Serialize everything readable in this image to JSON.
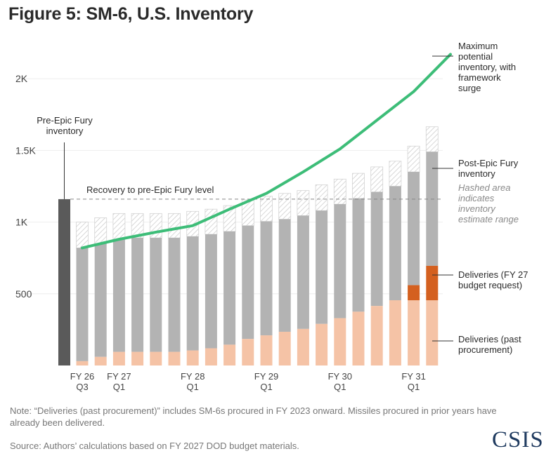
{
  "title": "Figure 5: SM-6, U.S. Inventory",
  "note": "Note: “Deliveries (past procurement)” includes SM-6s procured in FY 2023 onward. Missiles procured in prior years have already been delivered.",
  "source": "Source: Authors’ calculations based on FY 2027 DOD budget materials.",
  "logo": "CSIS",
  "colors": {
    "pre_epic_bar": "#5a5a5a",
    "post_epic_inventory": "#b3b3b3",
    "deliveries_past": "#f5c3a6",
    "deliveries_fy27": "#d4601f",
    "max_potential_line": "#3dbd78",
    "hashed": "#cfcfcf"
  },
  "chart_data": {
    "type": "bar",
    "ylim": [
      0,
      2200
    ],
    "y_ticks": [
      {
        "value": 500,
        "label": "500"
      },
      {
        "value": 1000,
        "label": "1K"
      },
      {
        "value": 1500,
        "label": "1.5K"
      },
      {
        "value": 2000,
        "label": "2K"
      }
    ],
    "x_tick_labels": [
      {
        "index": 1,
        "lines": [
          "FY 26",
          "Q3"
        ]
      },
      {
        "index": 3,
        "lines": [
          "FY 27",
          "Q1"
        ]
      },
      {
        "index": 7,
        "lines": [
          "FY 28",
          "Q1"
        ]
      },
      {
        "index": 11,
        "lines": [
          "FY 29",
          "Q1"
        ]
      },
      {
        "index": 15,
        "lines": [
          "FY 30",
          "Q1"
        ]
      },
      {
        "index": 19,
        "lines": [
          "FY 31",
          "Q1"
        ]
      }
    ],
    "pre_epic": {
      "value": 1160,
      "label": [
        "Pre-Epic Fury",
        "inventory"
      ]
    },
    "reference_line": {
      "value": 1160,
      "label": "Recovery to pre-Epic Fury level"
    },
    "quarters": [
      {
        "past": 30,
        "fy27": 0,
        "low": 820,
        "high": 1000
      },
      {
        "past": 60,
        "fy27": 0,
        "low": 850,
        "high": 1030
      },
      {
        "past": 95,
        "fy27": 0,
        "low": 880,
        "high": 1060
      },
      {
        "past": 95,
        "fy27": 0,
        "low": 890,
        "high": 1060
      },
      {
        "past": 95,
        "fy27": 0,
        "low": 890,
        "high": 1060
      },
      {
        "past": 95,
        "fy27": 0,
        "low": 890,
        "high": 1060
      },
      {
        "past": 105,
        "fy27": 0,
        "low": 900,
        "high": 1075
      },
      {
        "past": 120,
        "fy27": 0,
        "low": 915,
        "high": 1090
      },
      {
        "past": 145,
        "fy27": 0,
        "low": 935,
        "high": 1115
      },
      {
        "past": 185,
        "fy27": 0,
        "low": 975,
        "high": 1155
      },
      {
        "past": 210,
        "fy27": 0,
        "low": 1005,
        "high": 1180
      },
      {
        "past": 235,
        "fy27": 0,
        "low": 1020,
        "high": 1200
      },
      {
        "past": 255,
        "fy27": 0,
        "low": 1045,
        "high": 1220
      },
      {
        "past": 290,
        "fy27": 0,
        "low": 1080,
        "high": 1260
      },
      {
        "past": 330,
        "fy27": 0,
        "low": 1125,
        "high": 1300
      },
      {
        "past": 375,
        "fy27": 0,
        "low": 1165,
        "high": 1340
      },
      {
        "past": 415,
        "fy27": 0,
        "low": 1210,
        "high": 1385
      },
      {
        "past": 455,
        "fy27": 0,
        "low": 1250,
        "high": 1425
      },
      {
        "past": 455,
        "fy27": 105,
        "low": 1350,
        "high": 1530
      },
      {
        "past": 455,
        "fy27": 240,
        "low": 1490,
        "high": 1665
      }
    ],
    "max_potential_line": [
      {
        "index": 1,
        "value": 820
      },
      {
        "index": 3,
        "value": 880
      },
      {
        "index": 5,
        "value": 930
      },
      {
        "index": 7,
        "value": 975
      },
      {
        "index": 9,
        "value": 1090
      },
      {
        "index": 11,
        "value": 1200
      },
      {
        "index": 13,
        "value": 1350
      },
      {
        "index": 15,
        "value": 1510
      },
      {
        "index": 17,
        "value": 1710
      },
      {
        "index": 19,
        "value": 1910
      },
      {
        "index": 21,
        "value": 2170
      }
    ],
    "legend": {
      "max_potential": [
        "Maximum",
        "potential",
        "inventory, with",
        "framework",
        "surge"
      ],
      "post_epic": [
        "Post-Epic Fury",
        "inventory"
      ],
      "hashed": [
        "Hashed area",
        "indicates",
        "inventory",
        "estimate range"
      ],
      "deliveries_fy27": [
        "Deliveries (FY 27",
        "budget request)"
      ],
      "deliveries_past": [
        "Deliveries (past",
        "procurement)"
      ]
    }
  }
}
